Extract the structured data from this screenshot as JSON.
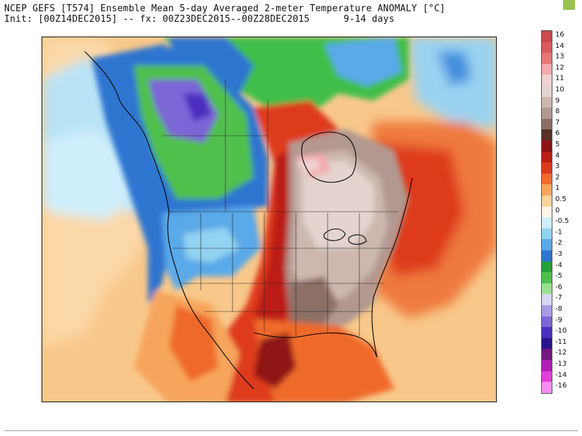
{
  "title": {
    "line1": "NCEP GEFS [T574] Ensemble Mean 5-day Averaged 2-meter Temperature ANOMALY [°C]",
    "line2": "Init: [00Z14DEC2015] -- fx: 00Z23DEC2015--00Z28DEC2015      9-14 days"
  },
  "colors": {
    "corner_mark": "#9bc34d",
    "ocean_warm": "#f8c88a",
    "warm_red": "#d8381c",
    "hot_brown": "#b8a09a",
    "cold_blue": "#3a7fd4",
    "cold_green": "#3fbe4a",
    "cold_purple": "#7a64d0"
  },
  "legend": {
    "items": [
      {
        "label": "16",
        "color": "#c94a4a"
      },
      {
        "label": "14",
        "color": "#d85a5a"
      },
      {
        "label": "13",
        "color": "#e97676"
      },
      {
        "label": "12",
        "color": "#f4a9ad"
      },
      {
        "label": "11",
        "color": "#f0d2d0"
      },
      {
        "label": "10",
        "color": "#e3d4cf"
      },
      {
        "label": "9",
        "color": "#cdb8b0"
      },
      {
        "label": "8",
        "color": "#b29890"
      },
      {
        "label": "7",
        "color": "#8c6f66"
      },
      {
        "label": "6",
        "color": "#5a2f26"
      },
      {
        "label": "5",
        "color": "#8e1212"
      },
      {
        "label": "4",
        "color": "#bb1e12"
      },
      {
        "label": "3",
        "color": "#de3a1e"
      },
      {
        "label": "2",
        "color": "#ef6b2c"
      },
      {
        "label": "1",
        "color": "#f7a55c"
      },
      {
        "label": "0.5",
        "color": "#fbd49a"
      },
      {
        "label": "0",
        "color": "#fdf6e6"
      },
      {
        "label": "-0.5",
        "color": "#cfeefb"
      },
      {
        "label": "-1",
        "color": "#93d3f2"
      },
      {
        "label": "-2",
        "color": "#5aa9e8"
      },
      {
        "label": "-3",
        "color": "#2f74d0"
      },
      {
        "label": "-4",
        "color": "#22a136"
      },
      {
        "label": "-5",
        "color": "#50c04c"
      },
      {
        "label": "-6",
        "color": "#9be08f"
      },
      {
        "label": "-7",
        "color": "#d6d6f4"
      },
      {
        "label": "-8",
        "color": "#a89ae6"
      },
      {
        "label": "-9",
        "color": "#7c66d6"
      },
      {
        "label": "-10",
        "color": "#4b2fc0"
      },
      {
        "label": "-11",
        "color": "#2b138f"
      },
      {
        "label": "-12",
        "color": "#731780"
      },
      {
        "label": "-13",
        "color": "#b21fb8"
      },
      {
        "label": "-14",
        "color": "#e33fd8"
      },
      {
        "label": "-16",
        "color": "#f58ef0"
      }
    ]
  }
}
